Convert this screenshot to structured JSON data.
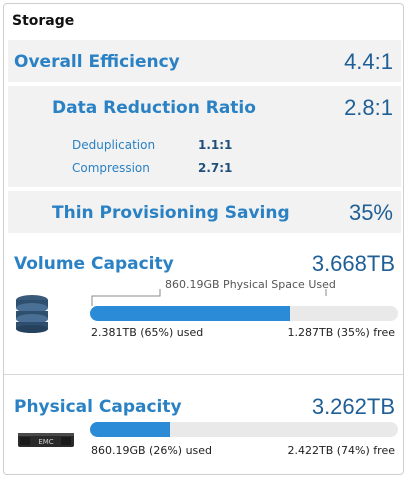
{
  "panel": {
    "title": "Storage"
  },
  "overall": {
    "label": "Overall Efficiency",
    "value": "4.4:1"
  },
  "reduction": {
    "label": "Data Reduction Ratio",
    "value": "2.8:1",
    "dedup_label": "Deduplication",
    "dedup_value": "1.1:1",
    "comp_label": "Compression",
    "comp_value": "2.7:1"
  },
  "thin": {
    "label": "Thin Provisioning Saving",
    "value": "35%"
  },
  "volume": {
    "label": "Volume Capacity",
    "value": "3.668TB",
    "physical_note": "860.19GB Physical Space Used",
    "used": "2.381TB (65%) used",
    "free": "1.287TB (35%) free",
    "used_fraction": 0.65,
    "physical_fraction": 0.23
  },
  "physical": {
    "label": "Physical Capacity",
    "value": "3.262TB",
    "used": "860.19GB (26%) used",
    "free": "2.422TB (74%) free",
    "used_fraction": 0.26,
    "device_label": "EMC"
  },
  "colors": {
    "accent": "#2a81c4",
    "bar": "#2b8bd6",
    "track": "#e9e9e9"
  }
}
